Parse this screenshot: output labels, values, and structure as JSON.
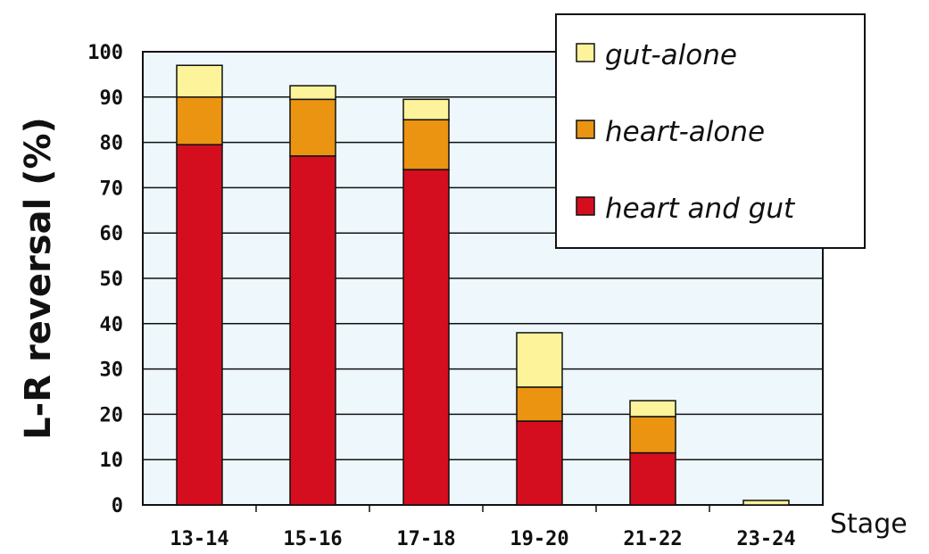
{
  "chart_data": {
    "type": "bar",
    "stacked": true,
    "title": "",
    "xlabel": "Stage",
    "ylabel": "L-R reversal (%)",
    "ylim": [
      0,
      100
    ],
    "yticks": [
      0,
      10,
      20,
      30,
      40,
      50,
      60,
      70,
      80,
      90,
      100
    ],
    "grid": true,
    "legend_position": "top-right",
    "categories": [
      "13-14",
      "15-16",
      "17-18",
      "19-20",
      "21-22",
      "23-24"
    ],
    "series": [
      {
        "name": "heart and gut",
        "color": "#d40e1e",
        "values": [
          79.5,
          77,
          74,
          18.5,
          11.5,
          0
        ]
      },
      {
        "name": "heart-alone",
        "color": "#ea9412",
        "values": [
          10.5,
          12.5,
          11,
          7.5,
          8,
          0
        ]
      },
      {
        "name": "gut-alone",
        "color": "#fdf39a",
        "values": [
          7,
          3,
          4.5,
          12,
          3.5,
          1
        ]
      }
    ],
    "legend_order": [
      2,
      1,
      0
    ],
    "plot_background": "#eef7fb"
  }
}
